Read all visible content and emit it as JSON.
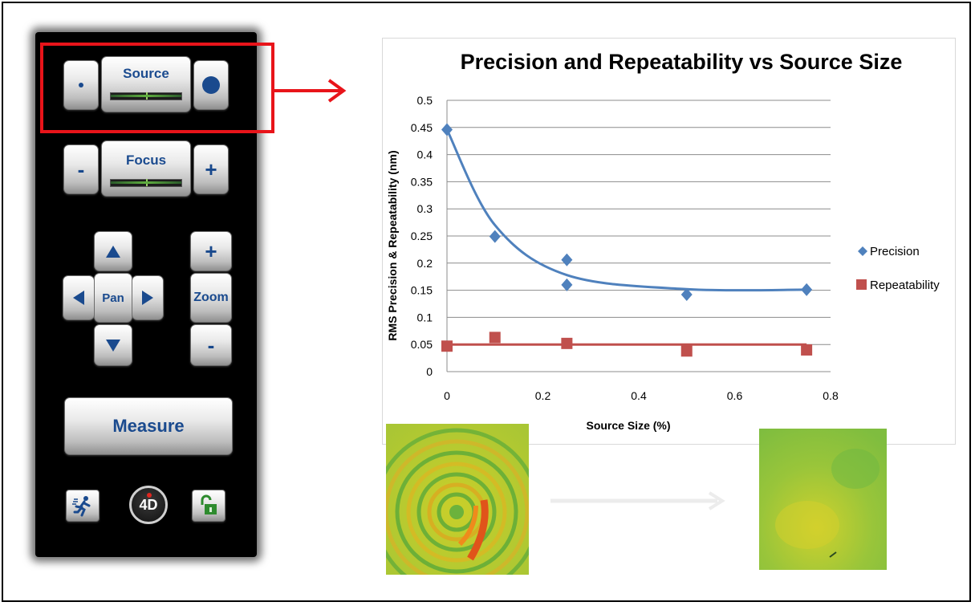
{
  "panel": {
    "source": {
      "label": "Source"
    },
    "focus": {
      "label": "Focus",
      "minus": "-",
      "plus": "+"
    },
    "pan": {
      "label": "Pan"
    },
    "zoom": {
      "label": "Zoom",
      "plus": "+",
      "minus": "-"
    },
    "measure": {
      "label": "Measure"
    },
    "logo": {
      "text": "4D"
    },
    "icons": [
      "runner-icon",
      "4d-logo-icon",
      "unlock-icon"
    ]
  },
  "colors": {
    "precision": "#4f81bd",
    "repeatability": "#c0504d",
    "highlight": "#e8141a"
  },
  "chart_data": {
    "type": "scatter",
    "title": "Precision and Repeatability vs Source Size",
    "xlabel": "Source Size (%)",
    "ylabel": "RMS Precision & Repeatability (nm)",
    "xlim": [
      0,
      0.8
    ],
    "ylim": [
      0,
      0.5
    ],
    "xticks": [
      "0",
      "0.2",
      "0.4",
      "0.6",
      "0.8"
    ],
    "yticks": [
      "0",
      "0.05",
      "0.1",
      "0.15",
      "0.2",
      "0.25",
      "0.3",
      "0.35",
      "0.4",
      "0.45",
      "0.5"
    ],
    "grid": true,
    "legend": "right",
    "series": [
      {
        "name": "Precision",
        "marker": "diamond",
        "color": "#4f81bd",
        "points": [
          [
            0,
            0.446
          ],
          [
            0.1,
            0.249
          ],
          [
            0.25,
            0.206
          ],
          [
            0.25,
            0.16
          ],
          [
            0.5,
            0.142
          ],
          [
            0.75,
            0.151
          ]
        ],
        "trend": [
          [
            0,
            0.446
          ],
          [
            0.1,
            0.27
          ],
          [
            0.25,
            0.178
          ],
          [
            0.5,
            0.152
          ],
          [
            0.75,
            0.151
          ]
        ]
      },
      {
        "name": "Repeatability",
        "marker": "square",
        "color": "#c0504d",
        "points": [
          [
            0,
            0.047
          ],
          [
            0.1,
            0.063
          ],
          [
            0.25,
            0.052
          ],
          [
            0.5,
            0.038
          ],
          [
            0.75,
            0.04
          ]
        ],
        "trend": [
          [
            0,
            0.05
          ],
          [
            0.75,
            0.05
          ]
        ]
      }
    ]
  }
}
